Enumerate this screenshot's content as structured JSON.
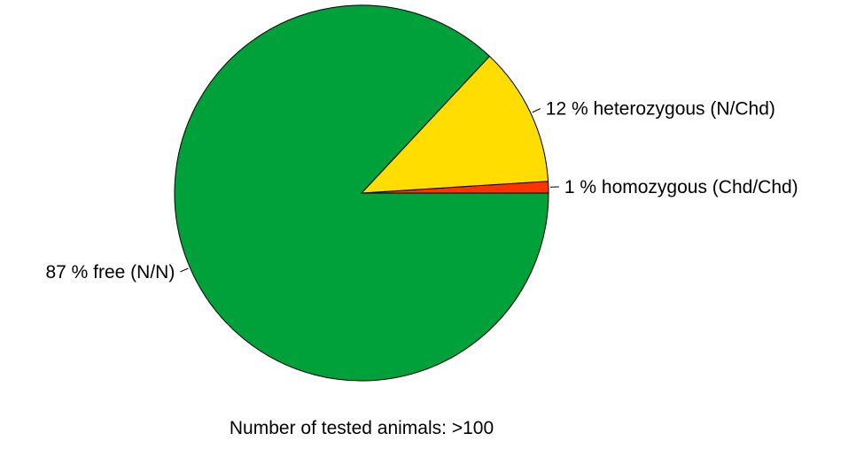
{
  "chart_data": {
    "type": "pie",
    "slices": [
      {
        "label": "87 % free (N/N)",
        "value": 87,
        "color": "#00a03a"
      },
      {
        "label": "12 % heterozygous (N/Chd)",
        "value": 12,
        "color": "#ffdd00"
      },
      {
        "label": "1 % homozygous (Chd/Chd)",
        "value": 1,
        "color": "#ff3300"
      }
    ],
    "start_direction": "east",
    "direction": "counterclockwise",
    "slice_order_from_start": [
      "1 % homozygous (Chd/Chd)",
      "12 % heterozygous (N/Chd)",
      "87 % free (N/N)"
    ],
    "legend": "none",
    "caption": "Number of tested animals: >100"
  }
}
